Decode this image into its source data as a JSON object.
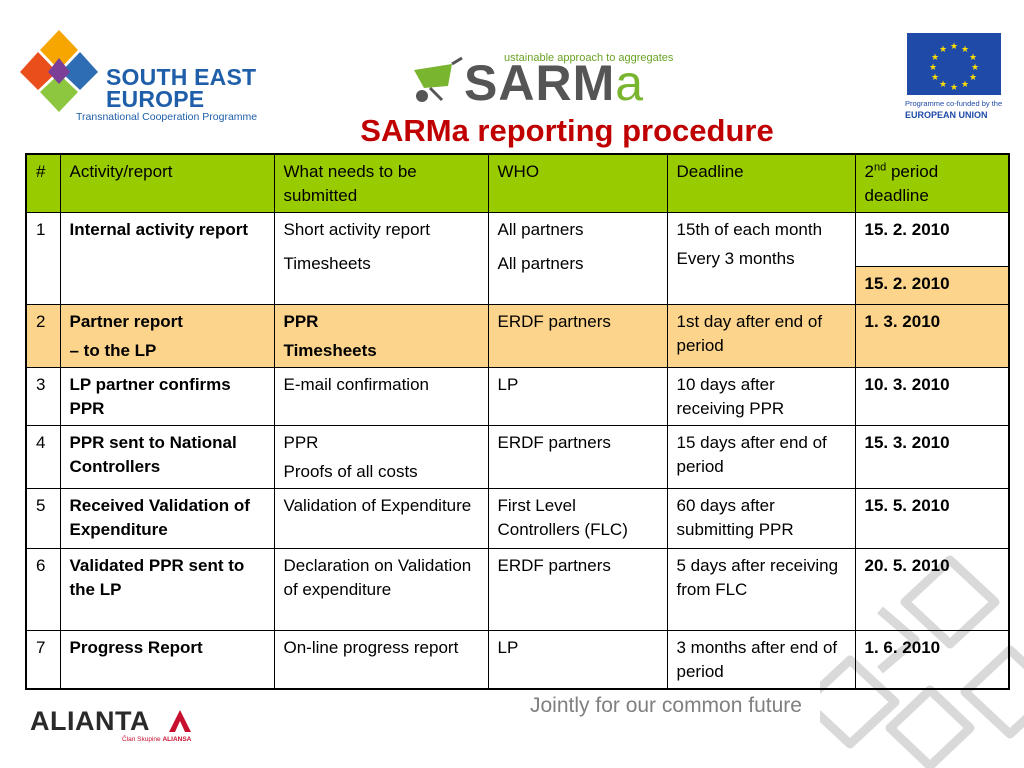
{
  "header": {
    "see_logo": {
      "line1": "SOUTH EAST",
      "line2": "EUROPE",
      "line3": "Transnational Cooperation Programme"
    },
    "sarma_logo": {
      "tagline": "ustainable approach to aggregates",
      "word_main": "SARM",
      "word_tail": "a"
    },
    "eu_logo": {
      "caption1": "Programme co-funded by the",
      "caption2": "EUROPEAN UNION"
    },
    "title": "SARMa reporting procedure"
  },
  "table": {
    "headers": {
      "num": "#",
      "activity": "Activity/report",
      "what": "What needs to be submitted",
      "who": "WHO",
      "deadline": "Deadline",
      "second_pre": "2",
      "second_sup": "nd",
      "second_post": " period deadline"
    },
    "rows": [
      {
        "num": "1",
        "activity": "Internal activity report",
        "what1": "Short activity report",
        "what2": "Timesheets",
        "who1": "All partners",
        "who2": "All partners",
        "deadline1": "15th of each month",
        "deadline2": "Every 3 months",
        "second1": "15. 2. 2010",
        "second2": "15. 2. 2010"
      },
      {
        "num": "2",
        "activity1": "Partner report",
        "activity2": "– to the LP",
        "what1": "PPR",
        "what2": "Timesheets",
        "who": "ERDF partners",
        "deadline": "1st day after end of period",
        "second": "1. 3. 2010"
      },
      {
        "num": "3",
        "activity": "LP partner confirms PPR",
        "what": "E-mail confirmation",
        "who": "LP",
        "deadline": "10 days after receiving PPR",
        "second": "10. 3. 2010"
      },
      {
        "num": "4",
        "activity": "PPR sent to National Controllers",
        "what1": "PPR",
        "what2": "Proofs of all costs",
        "who": "ERDF partners",
        "deadline": "15 days after end of period",
        "second": "15. 3. 2010"
      },
      {
        "num": "5",
        "activity": "Received Validation of Expenditure",
        "what": "Validation of Expenditure",
        "who": "First Level Controllers (FLC)",
        "deadline": "60 days after submitting PPR",
        "second": "15. 5. 2010"
      },
      {
        "num": "6",
        "activity": "Validated PPR sent to the LP",
        "what": "Declaration on Validation of expenditure",
        "who": "ERDF partners",
        "deadline": "5 days after receiving from FLC",
        "second": "20. 5. 2010"
      },
      {
        "num": "7",
        "activity": "Progress Report",
        "what": "On-line progress report",
        "who": "LP",
        "deadline": "3 months after end of period",
        "second": "1. 6. 2010"
      }
    ]
  },
  "footer": {
    "alianta_word": "ALIANTA",
    "alianta_sub_pre": "Član Skupine ",
    "alianta_sub_bold": "ALIANSA",
    "slogan": "Jointly for our common future"
  },
  "colors": {
    "title": "#c00000",
    "header_green": "#99cc00",
    "highlight_orange": "#fcd48b",
    "border": "#000000"
  }
}
